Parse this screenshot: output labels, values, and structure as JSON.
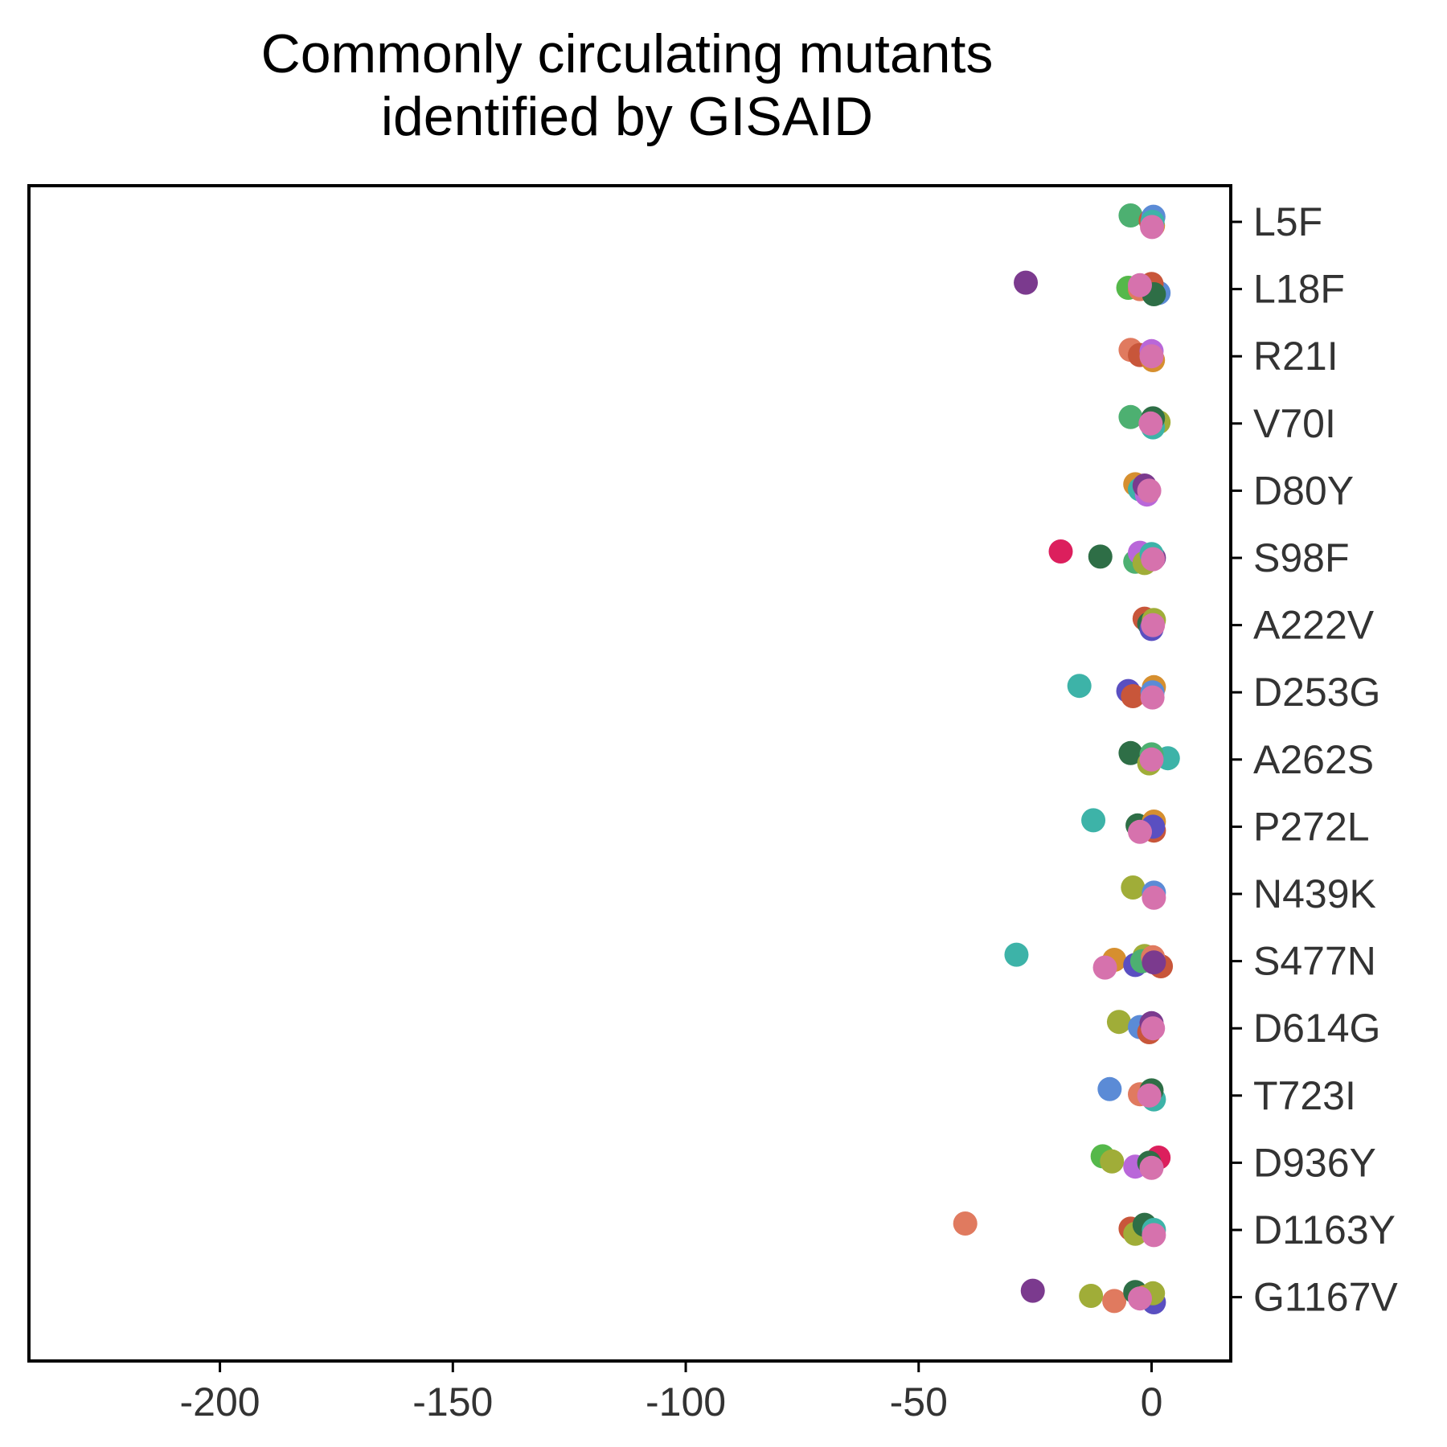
{
  "chart_data": {
    "type": "scatter",
    "title_lines": [
      "Commonly circulating mutants",
      "identified by GISAID"
    ],
    "xlabel": "",
    "ylabel": "",
    "xlim": [
      -241,
      17
    ],
    "x_ticks": [
      -200,
      -150,
      -100,
      -50,
      0
    ],
    "y_axis_position": "right",
    "grid": false,
    "legend": "none",
    "categories": [
      "L5F",
      "L18F",
      "R21I",
      "V70I",
      "D80Y",
      "S98F",
      "A222V",
      "D253G",
      "A262S",
      "P272L",
      "N439K",
      "S477N",
      "D614G",
      "T723I",
      "D936Y",
      "D1163Y",
      "G1167V"
    ],
    "point_sets": [
      {
        "category": "L5F",
        "points": [
          {
            "x": -4.5,
            "c": "#4db071"
          },
          {
            "x": -0.2,
            "c": "#c8563a"
          },
          {
            "x": 0.3,
            "c": "#d68f2f"
          },
          {
            "x": 0.4,
            "c": "#5b8bd6"
          },
          {
            "x": 0.2,
            "c": "#3db3a8"
          },
          {
            "x": 0.1,
            "c": "#d672ad"
          }
        ]
      },
      {
        "category": "L18F",
        "points": [
          {
            "x": -27,
            "c": "#7b3a8e"
          },
          {
            "x": -5,
            "c": "#55b84a"
          },
          {
            "x": 1.5,
            "c": "#5b8bd6"
          },
          {
            "x": 0,
            "c": "#c8563a"
          },
          {
            "x": -2.5,
            "c": "#e07a5f"
          },
          {
            "x": 0.5,
            "c": "#2e6e46"
          },
          {
            "x": -2.5,
            "c": "#d672ad"
          }
        ]
      },
      {
        "category": "R21I",
        "points": [
          {
            "x": -4.5,
            "c": "#e07a5f"
          },
          {
            "x": -2.5,
            "c": "#c8563a"
          },
          {
            "x": 0.3,
            "c": "#d68f2f"
          },
          {
            "x": 0,
            "c": "#b967d9"
          },
          {
            "x": 0,
            "c": "#d672ad"
          }
        ]
      },
      {
        "category": "V70I",
        "points": [
          {
            "x": -4.5,
            "c": "#4db071"
          },
          {
            "x": 1.5,
            "c": "#a0ad38"
          },
          {
            "x": 0.3,
            "c": "#3db3a8"
          },
          {
            "x": 0.3,
            "c": "#2e6e46"
          },
          {
            "x": -0.2,
            "c": "#d672ad"
          }
        ]
      },
      {
        "category": "D80Y",
        "points": [
          {
            "x": -3.5,
            "c": "#d68f2f"
          },
          {
            "x": -2.5,
            "c": "#3db3a8"
          },
          {
            "x": -1,
            "c": "#b967d9"
          },
          {
            "x": -1.5,
            "c": "#7b3a8e"
          },
          {
            "x": -0.5,
            "c": "#d672ad"
          }
        ]
      },
      {
        "category": "S98F",
        "points": [
          {
            "x": -19.5,
            "c": "#dc1f5d"
          },
          {
            "x": -11,
            "c": "#2e6e46"
          },
          {
            "x": -3.5,
            "c": "#4db071"
          },
          {
            "x": -2.5,
            "c": "#b967d9"
          },
          {
            "x": 0.5,
            "c": "#7b3a8e"
          },
          {
            "x": -1.5,
            "c": "#a0ad38"
          },
          {
            "x": 0,
            "c": "#3db3a8"
          },
          {
            "x": 0.3,
            "c": "#d672ad"
          }
        ]
      },
      {
        "category": "A222V",
        "points": [
          {
            "x": -1.5,
            "c": "#c8563a"
          },
          {
            "x": -0.5,
            "c": "#2e6e46"
          },
          {
            "x": 0,
            "c": "#5a4fc1"
          },
          {
            "x": 0.5,
            "c": "#a0ad38"
          },
          {
            "x": 0.3,
            "c": "#d672ad"
          }
        ]
      },
      {
        "category": "D253G",
        "points": [
          {
            "x": -15.5,
            "c": "#3db3a8"
          },
          {
            "x": -5,
            "c": "#5a4fc1"
          },
          {
            "x": -4,
            "c": "#c8563a"
          },
          {
            "x": 0.5,
            "c": "#d68f2f"
          },
          {
            "x": 0.2,
            "c": "#5b8bd6"
          },
          {
            "x": 0.2,
            "c": "#d672ad"
          }
        ]
      },
      {
        "category": "A262S",
        "points": [
          {
            "x": -4.5,
            "c": "#2e6e46"
          },
          {
            "x": 3.5,
            "c": "#3db3a8"
          },
          {
            "x": -0.5,
            "c": "#a0ad38"
          },
          {
            "x": 0,
            "c": "#4db071"
          },
          {
            "x": 0,
            "c": "#d672ad"
          }
        ]
      },
      {
        "category": "P272L",
        "points": [
          {
            "x": -12.5,
            "c": "#3db3a8"
          },
          {
            "x": -3,
            "c": "#2e6e46"
          },
          {
            "x": 0.5,
            "c": "#c8563a"
          },
          {
            "x": 0.5,
            "c": "#d68f2f"
          },
          {
            "x": 0.3,
            "c": "#5a4fc1"
          },
          {
            "x": -2.5,
            "c": "#d672ad"
          }
        ]
      },
      {
        "category": "N439K",
        "points": [
          {
            "x": -4,
            "c": "#a0ad38"
          },
          {
            "x": 0.5,
            "c": "#5b8bd6"
          },
          {
            "x": 0.5,
            "c": "#d672ad"
          }
        ]
      },
      {
        "category": "S477N",
        "points": [
          {
            "x": -29,
            "c": "#3db3a8"
          },
          {
            "x": -8,
            "c": "#d68f2f"
          },
          {
            "x": -3.5,
            "c": "#5a4fc1"
          },
          {
            "x": -1.5,
            "c": "#a0ad38"
          },
          {
            "x": -2,
            "c": "#4db071"
          },
          {
            "x": 2,
            "c": "#c8563a"
          },
          {
            "x": 0.3,
            "c": "#e07a5f"
          },
          {
            "x": 0.5,
            "c": "#7b3a8e"
          },
          {
            "x": -10,
            "c": "#d672ad"
          }
        ]
      },
      {
        "category": "D614G",
        "points": [
          {
            "x": -7,
            "c": "#a0ad38"
          },
          {
            "x": -2.5,
            "c": "#5b8bd6"
          },
          {
            "x": -0.5,
            "c": "#c8563a"
          },
          {
            "x": 0,
            "c": "#7b3a8e"
          },
          {
            "x": 0.3,
            "c": "#d672ad"
          }
        ]
      },
      {
        "category": "T723I",
        "points": [
          {
            "x": -9,
            "c": "#5b8bd6"
          },
          {
            "x": -2.5,
            "c": "#e07a5f"
          },
          {
            "x": 0.5,
            "c": "#3db3a8"
          },
          {
            "x": 0,
            "c": "#2e6e46"
          },
          {
            "x": -0.5,
            "c": "#d672ad"
          }
        ]
      },
      {
        "category": "D936Y",
        "points": [
          {
            "x": -10.5,
            "c": "#55b84a"
          },
          {
            "x": -8.5,
            "c": "#a0ad38"
          },
          {
            "x": -3.5,
            "c": "#b967d9"
          },
          {
            "x": 1.5,
            "c": "#dc1f5d"
          },
          {
            "x": -0.5,
            "c": "#2e6e46"
          },
          {
            "x": 0,
            "c": "#d672ad"
          }
        ]
      },
      {
        "category": "D1163Y",
        "points": [
          {
            "x": -40,
            "c": "#e07a5f"
          },
          {
            "x": -4.5,
            "c": "#c8563a"
          },
          {
            "x": -3.5,
            "c": "#a0ad38"
          },
          {
            "x": -1.5,
            "c": "#2e6e46"
          },
          {
            "x": 0.5,
            "c": "#3db3a8"
          },
          {
            "x": 0.5,
            "c": "#d672ad"
          }
        ]
      },
      {
        "category": "G1167V",
        "points": [
          {
            "x": -25.5,
            "c": "#7b3a8e"
          },
          {
            "x": -13,
            "c": "#a0ad38"
          },
          {
            "x": -8,
            "c": "#e07a5f"
          },
          {
            "x": -3.5,
            "c": "#2e6e46"
          },
          {
            "x": -1.5,
            "c": "#d68f2f"
          },
          {
            "x": 0.5,
            "c": "#5a4fc1"
          },
          {
            "x": 0.3,
            "c": "#a0ad38"
          },
          {
            "x": -2.5,
            "c": "#d672ad"
          }
        ]
      }
    ]
  }
}
